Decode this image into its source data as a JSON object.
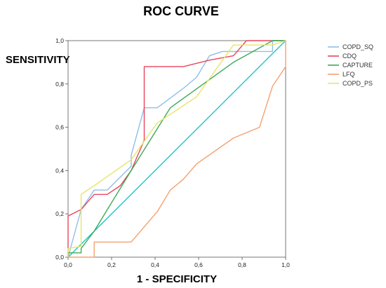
{
  "chart_data": {
    "type": "line",
    "title": "ROC CURVE",
    "xlabel": "1 - SPECIFICITY",
    "ylabel": "SENSITIVITY",
    "xlim": [
      0,
      1
    ],
    "ylim": [
      0,
      1
    ],
    "x_ticks": [
      "0,0",
      "0,2",
      "0,4",
      "0,6",
      "0,8",
      "1,0"
    ],
    "y_ticks": [
      "0,0",
      "0,2",
      "0,4",
      "0,6",
      "0,8",
      "1,0"
    ],
    "grid": false,
    "legend_position": "top-right",
    "series": [
      {
        "name": "COPD_SQ",
        "color": "#8fbfe8",
        "points": [
          [
            0,
            0
          ],
          [
            0.06,
            0.22
          ],
          [
            0.12,
            0.31
          ],
          [
            0.18,
            0.31
          ],
          [
            0.29,
            0.42
          ],
          [
            0.29,
            0.47
          ],
          [
            0.35,
            0.69
          ],
          [
            0.41,
            0.69
          ],
          [
            0.53,
            0.78
          ],
          [
            0.59,
            0.83
          ],
          [
            0.65,
            0.93
          ],
          [
            0.71,
            0.95
          ],
          [
            0.76,
            0.95
          ],
          [
            0.82,
            0.95
          ],
          [
            0.88,
            0.95
          ],
          [
            0.94,
            0.95
          ],
          [
            0.94,
            1.0
          ],
          [
            1.0,
            1.0
          ]
        ]
      },
      {
        "name": "CDQ",
        "color": "#e8455a",
        "points": [
          [
            0,
            0
          ],
          [
            0,
            0.19
          ],
          [
            0.06,
            0.22
          ],
          [
            0.12,
            0.29
          ],
          [
            0.18,
            0.29
          ],
          [
            0.24,
            0.33
          ],
          [
            0.29,
            0.4
          ],
          [
            0.35,
            0.54
          ],
          [
            0.35,
            0.88
          ],
          [
            0.53,
            0.88
          ],
          [
            0.65,
            0.91
          ],
          [
            0.76,
            0.93
          ],
          [
            0.82,
            1.0
          ],
          [
            1.0,
            1.0
          ]
        ]
      },
      {
        "name": "CAPTURE",
        "color": "#3daa5a",
        "points": [
          [
            0,
            0
          ],
          [
            0,
            0.02
          ],
          [
            0.06,
            0.02
          ],
          [
            0.06,
            0.04
          ],
          [
            0.12,
            0.12
          ],
          [
            0.29,
            0.4
          ],
          [
            0.47,
            0.69
          ],
          [
            0.76,
            0.9
          ],
          [
            0.94,
            1.0
          ],
          [
            1.0,
            1.0
          ]
        ]
      },
      {
        "name": "LFQ",
        "color": "#f5a070",
        "points": [
          [
            0,
            0
          ],
          [
            0.12,
            0.0
          ],
          [
            0.12,
            0.07
          ],
          [
            0.29,
            0.07
          ],
          [
            0.35,
            0.14
          ],
          [
            0.41,
            0.21
          ],
          [
            0.47,
            0.31
          ],
          [
            0.53,
            0.36
          ],
          [
            0.59,
            0.43
          ],
          [
            0.76,
            0.55
          ],
          [
            0.88,
            0.6
          ],
          [
            0.94,
            0.79
          ],
          [
            1.0,
            0.88
          ],
          [
            1.0,
            1.0
          ]
        ]
      },
      {
        "name": "COPD_PS",
        "color": "#e8e46a",
        "points": [
          [
            0,
            0
          ],
          [
            0,
            0.04
          ],
          [
            0.06,
            0.05
          ],
          [
            0.06,
            0.29
          ],
          [
            0.12,
            0.33
          ],
          [
            0.29,
            0.45
          ],
          [
            0.41,
            0.62
          ],
          [
            0.59,
            0.74
          ],
          [
            0.76,
            0.98
          ],
          [
            0.82,
            0.98
          ],
          [
            0.94,
            0.98
          ],
          [
            1.0,
            1.0
          ]
        ]
      }
    ],
    "reference_line": {
      "color": "#22c4c8",
      "points": [
        [
          0,
          0
        ],
        [
          1,
          1
        ]
      ]
    }
  }
}
